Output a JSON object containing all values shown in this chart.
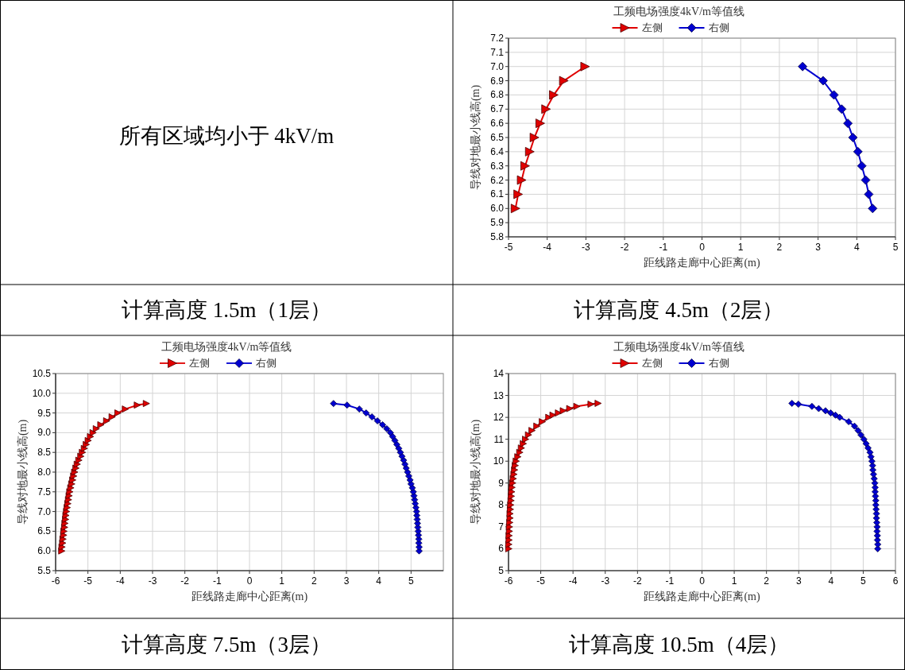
{
  "chart_data": [
    {
      "type": "other",
      "title": "所有区域均小于 4kV/m",
      "annotations": [
        "计算高度 1.5m（1层）"
      ]
    },
    {
      "type": "line",
      "title": "工频电场强度4kV/m等值线",
      "xlabel": "距线路走廊中心距离(m)",
      "ylabel": "导线对地最小线高(m)",
      "annotations": [
        "计算高度 4.5m（2层）"
      ],
      "xlim": [
        -5,
        5
      ],
      "xticks": [
        -5,
        -4,
        -3,
        -2,
        -1,
        0,
        1,
        2,
        3,
        4,
        5
      ],
      "ylim": [
        5.8,
        7.2
      ],
      "yticks": [
        5.8,
        5.9,
        {
          "value": 6,
          "label": "6.0"
        },
        6.1,
        6.2,
        6.3,
        6.4,
        6.5,
        6.6,
        6.7,
        6.8,
        6.9,
        {
          "value": 7,
          "label": "7.0"
        },
        7.1,
        7.2
      ],
      "grid": true,
      "legend": "top",
      "series": [
        {
          "name": "左侧",
          "color": "#e00000",
          "marker": "triangle",
          "x": [
            -4.82,
            -4.75,
            -4.66,
            -4.57,
            -4.45,
            -4.33,
            -4.18,
            -4.03,
            -3.83,
            -3.57,
            -3.02
          ],
          "values": [
            6.0,
            6.1,
            6.2,
            6.3,
            6.4,
            6.5,
            6.6,
            6.7,
            6.8,
            6.9,
            7.0
          ]
        },
        {
          "name": "右侧",
          "color": "#0000d0",
          "marker": "diamond",
          "x": [
            4.41,
            4.31,
            4.23,
            4.13,
            4.03,
            3.9,
            3.77,
            3.61,
            3.41,
            3.13,
            2.6
          ],
          "values": [
            6.0,
            6.1,
            6.2,
            6.3,
            6.4,
            6.5,
            6.6,
            6.7,
            6.8,
            6.9,
            7.0
          ]
        }
      ]
    },
    {
      "type": "line",
      "title": "工频电场强度4kV/m等值线",
      "xlabel": "距线路走廊中心距离(m)",
      "ylabel": "导线对地最小线高(m)",
      "annotations": [
        "计算高度 7.5m（3层）"
      ],
      "xlim": [
        -6,
        6
      ],
      "xticks": [
        -6,
        -5,
        -4,
        -3,
        -2,
        -1,
        0,
        1,
        2,
        3,
        4,
        5
      ],
      "ylim": [
        5.5,
        10.5
      ],
      "yticks": [
        5.5,
        {
          "value": 6,
          "label": "6.0"
        },
        6.5,
        {
          "value": 7,
          "label": "7.0"
        },
        7.5,
        {
          "value": 8,
          "label": "8.0"
        },
        8.5,
        {
          "value": 9,
          "label": "9.0"
        },
        9.5,
        {
          "value": 10,
          "label": "10.0"
        },
        10.5
      ],
      "grid": true,
      "legend": "top",
      "series": [
        {
          "name": "左侧",
          "color": "#e00000",
          "marker": "triangle",
          "x": [
            -5.81,
            -5.8,
            -5.78,
            -5.77,
            -5.75,
            -5.74,
            -5.72,
            -5.71,
            -5.69,
            -5.68,
            -5.66,
            -5.64,
            -5.62,
            -5.6,
            -5.58,
            -5.56,
            -5.53,
            -5.5,
            -5.47,
            -5.44,
            -5.41,
            -5.37,
            -5.33,
            -5.28,
            -5.22,
            -5.17,
            -5.11,
            -5.05,
            -4.99,
            -4.92,
            -4.84,
            -4.74,
            -4.6,
            -4.42,
            -4.25,
            -4.07,
            -3.84,
            -3.47,
            -3.19
          ],
          "values": [
            6.0,
            6.1,
            6.2,
            6.3,
            6.4,
            6.5,
            6.6,
            6.7,
            6.8,
            6.9,
            7.0,
            7.1,
            7.2,
            7.3,
            7.4,
            7.5,
            7.6,
            7.7,
            7.8,
            7.9,
            8.0,
            8.1,
            8.2,
            8.3,
            8.4,
            8.5,
            8.6,
            8.7,
            8.8,
            8.9,
            9.0,
            9.1,
            9.2,
            9.3,
            9.4,
            9.5,
            9.6,
            9.7,
            9.74
          ]
        },
        {
          "name": "右侧",
          "color": "#0000d0",
          "marker": "diamond",
          "x": [
            5.25,
            5.25,
            5.24,
            5.24,
            5.23,
            5.22,
            5.21,
            5.2,
            5.19,
            5.18,
            5.17,
            5.15,
            5.13,
            5.11,
            5.09,
            5.07,
            5.04,
            5.0,
            4.97,
            4.93,
            4.89,
            4.85,
            4.81,
            4.77,
            4.72,
            4.67,
            4.62,
            4.56,
            4.5,
            4.43,
            4.36,
            4.25,
            4.12,
            3.96,
            3.79,
            3.61,
            3.4,
            3.02,
            2.6
          ],
          "values": [
            6.0,
            6.1,
            6.2,
            6.3,
            6.4,
            6.5,
            6.6,
            6.7,
            6.8,
            6.9,
            7.0,
            7.1,
            7.2,
            7.3,
            7.4,
            7.5,
            7.6,
            7.7,
            7.8,
            7.9,
            8.0,
            8.1,
            8.2,
            8.3,
            8.4,
            8.5,
            8.6,
            8.7,
            8.8,
            8.9,
            9.0,
            9.1,
            9.2,
            9.3,
            9.4,
            9.5,
            9.6,
            9.7,
            9.74
          ]
        }
      ]
    },
    {
      "type": "line",
      "title": "工频电场强度4kV/m等值线",
      "xlabel": "距线路走廊中心距离(m)",
      "ylabel": "导线对地最小线高(m)",
      "annotations": [
        "计算高度 10.5m（4层）"
      ],
      "xlim": [
        -6,
        6
      ],
      "xticks": [
        -6,
        -5,
        -4,
        -3,
        -2,
        -1,
        0,
        1,
        2,
        3,
        4,
        5,
        6
      ],
      "ylim": [
        5,
        14
      ],
      "yticks": [
        5,
        6,
        7,
        8,
        9,
        10,
        11,
        12,
        13,
        14
      ],
      "grid": true,
      "legend": "top",
      "series": [
        {
          "name": "左侧",
          "color": "#e00000",
          "marker": "triangle",
          "x": [
            -5.99,
            -5.99,
            -5.98,
            -5.98,
            -5.97,
            -5.97,
            -5.96,
            -5.95,
            -5.95,
            -5.94,
            -5.93,
            -5.92,
            -5.91,
            -5.9,
            -5.89,
            -5.87,
            -5.85,
            -5.83,
            -5.81,
            -5.79,
            -5.76,
            -5.71,
            -5.65,
            -5.6,
            -5.54,
            -5.47,
            -5.38,
            -5.27,
            -5.12,
            -4.95,
            -4.75,
            -4.62,
            -4.45,
            -4.3,
            -4.1,
            -3.88,
            -3.44,
            -3.22
          ],
          "values": [
            6.0,
            6.2,
            6.4,
            6.6,
            6.8,
            7.0,
            7.2,
            7.4,
            7.6,
            7.8,
            8.0,
            8.2,
            8.4,
            8.6,
            8.8,
            9.0,
            9.2,
            9.4,
            9.6,
            9.8,
            10.0,
            10.2,
            10.4,
            10.6,
            10.8,
            11.0,
            11.2,
            11.4,
            11.6,
            11.8,
            12.0,
            12.1,
            12.2,
            12.3,
            12.4,
            12.5,
            12.6,
            12.64
          ]
        },
        {
          "name": "右侧",
          "color": "#0000d0",
          "marker": "diamond",
          "x": [
            5.45,
            5.45,
            5.44,
            5.44,
            5.43,
            5.43,
            5.42,
            5.41,
            5.41,
            5.4,
            5.39,
            5.39,
            5.38,
            5.37,
            5.37,
            5.36,
            5.34,
            5.32,
            5.3,
            5.29,
            5.27,
            5.24,
            5.21,
            5.15,
            5.09,
            5.02,
            4.93,
            4.84,
            4.73,
            4.55,
            4.27,
            4.14,
            3.99,
            3.83,
            3.62,
            3.41,
            2.99,
            2.79
          ],
          "values": [
            6.0,
            6.2,
            6.4,
            6.6,
            6.8,
            7.0,
            7.2,
            7.4,
            7.6,
            7.8,
            8.0,
            8.2,
            8.4,
            8.6,
            8.8,
            9.0,
            9.2,
            9.4,
            9.6,
            9.8,
            10.0,
            10.2,
            10.4,
            10.6,
            10.8,
            11.0,
            11.2,
            11.4,
            11.6,
            11.8,
            12.0,
            12.1,
            12.2,
            12.3,
            12.4,
            12.5,
            12.6,
            12.64
          ]
        }
      ]
    }
  ]
}
